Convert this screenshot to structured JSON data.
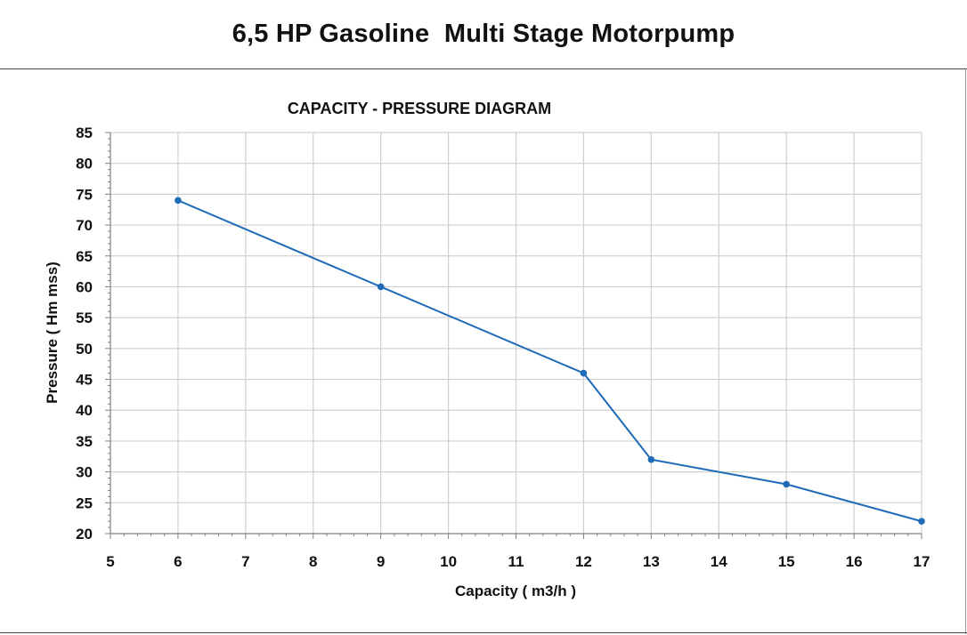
{
  "header": {
    "title": "6,5 HP Gasoline  Multi Stage Motorpump"
  },
  "colors": {
    "series": "#1f6bb8",
    "grid": "#d0d0d0",
    "axis": "#808080"
  },
  "chart_data": {
    "type": "line",
    "title": "CAPACITY - PRESSURE DIAGRAM",
    "xlabel": "Capacity ( m3/h )",
    "ylabel": "Pressure ( Hm mss)",
    "x_tick_labels": [
      "5",
      "6",
      "7",
      "8",
      "9",
      "10",
      "11",
      "12",
      "13",
      "14",
      "15",
      "16",
      "17"
    ],
    "y_tick_labels": [
      "20",
      "25",
      "30",
      "35",
      "40",
      "45",
      "50",
      "55",
      "60",
      "65",
      "70",
      "75",
      "80",
      "85"
    ],
    "ylim": [
      20,
      85
    ],
    "grid": true,
    "legend": "none",
    "series": [
      {
        "x": [
          "6",
          "9",
          "12",
          "13",
          "15",
          "17"
        ],
        "values": [
          74,
          60,
          46,
          32,
          28,
          22
        ]
      }
    ]
  }
}
